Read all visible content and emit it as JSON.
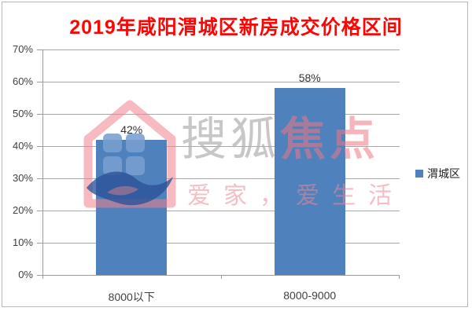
{
  "chart_data": {
    "type": "bar",
    "title": "2019年咸阳渭城区新房成交价格区间",
    "title_color": "#fe0505",
    "categories": [
      "8000以下",
      "8000-9000"
    ],
    "series": [
      {
        "name": "渭城区",
        "values": [
          42,
          58
        ],
        "color": "#4F81BD"
      }
    ],
    "value_suffix": "%",
    "value_labels": [
      "42%",
      "58%"
    ],
    "ylim": [
      0,
      70
    ],
    "ytick_step": 10,
    "ytick_labels": [
      "0%",
      "10%",
      "20%",
      "30%",
      "40%",
      "50%",
      "60%",
      "70%"
    ],
    "grid": true,
    "gridline_color": "#a8a8a8",
    "legend_position": "right"
  },
  "legend": {
    "items": [
      {
        "label": "渭城区",
        "color": "#4F81BD"
      }
    ]
  },
  "watermark": {
    "brand_gray": "搜狐",
    "brand_pink": "焦点",
    "tagline": "爱家，爱生活",
    "logo": "sohu-focus-house-logo",
    "pink": "#ef8c96",
    "blue": "#4a74b0"
  }
}
